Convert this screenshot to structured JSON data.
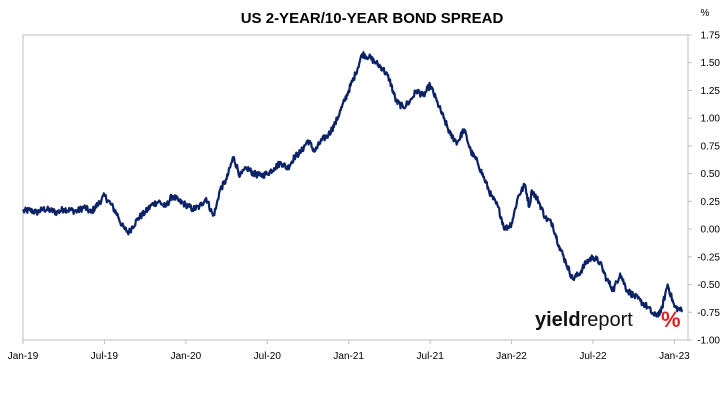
{
  "chart_data": {
    "type": "line",
    "title": "US 2-YEAR/10-YEAR BOND SPREAD",
    "ylabel": "%",
    "ylim": [
      -1.0,
      1.75
    ],
    "yticks": [
      "1.75",
      "1.50",
      "1.25",
      "1.00",
      "0.75",
      "0.50",
      "0.25",
      "0.00",
      "-0.25",
      "-0.50",
      "-0.75",
      "-1.00"
    ],
    "xlabels": [
      "Jan-19",
      "Jul-19",
      "Jan-20",
      "Jul-20",
      "Jan-21",
      "Jul-21",
      "Jan-22",
      "Jul-22",
      "Jan-23"
    ],
    "xrange_months": [
      0,
      49
    ],
    "series": [
      {
        "color": "#0c2267",
        "x": [
          0,
          0.5,
          1,
          1.5,
          2,
          2.5,
          3,
          3.5,
          4,
          4.5,
          5,
          5.5,
          6,
          6.5,
          7,
          7.3,
          7.5,
          7.8,
          8,
          8.5,
          9,
          9.5,
          10,
          10.5,
          11,
          11.5,
          12,
          12.5,
          13,
          13.5,
          14,
          14.2,
          14.5,
          15,
          15.5,
          16,
          16.5,
          17,
          17.5,
          18,
          18.5,
          19,
          19.5,
          20,
          20.5,
          21,
          21.5,
          22,
          22.5,
          23,
          23.5,
          24,
          24.5,
          25,
          25.5,
          26,
          26.5,
          27,
          27.5,
          28,
          28.5,
          29,
          29.5,
          30,
          30.5,
          31,
          31.5,
          32,
          32.5,
          33,
          33.5,
          34,
          34.5,
          35,
          35.5,
          36,
          36.5,
          37,
          37.3,
          37.5,
          38,
          38.5,
          39,
          39.5,
          40,
          40.5,
          41,
          41.5,
          42,
          42.5,
          43,
          43.5,
          44,
          44.5,
          45,
          45.5,
          46,
          46.5,
          47,
          47.5,
          48,
          48.3,
          48.6
        ],
        "values": [
          0.16,
          0.17,
          0.15,
          0.18,
          0.17,
          0.15,
          0.18,
          0.17,
          0.16,
          0.2,
          0.15,
          0.22,
          0.3,
          0.22,
          0.12,
          0.03,
          0.0,
          -0.03,
          0.01,
          0.1,
          0.15,
          0.22,
          0.25,
          0.2,
          0.3,
          0.25,
          0.22,
          0.18,
          0.2,
          0.28,
          0.12,
          0.18,
          0.35,
          0.45,
          0.65,
          0.48,
          0.55,
          0.5,
          0.48,
          0.5,
          0.55,
          0.6,
          0.55,
          0.65,
          0.7,
          0.8,
          0.7,
          0.8,
          0.85,
          0.95,
          1.1,
          1.25,
          1.4,
          1.58,
          1.55,
          1.5,
          1.45,
          1.35,
          1.15,
          1.1,
          1.15,
          1.25,
          1.2,
          1.3,
          1.15,
          1.0,
          0.85,
          0.78,
          0.9,
          0.7,
          0.6,
          0.45,
          0.3,
          0.2,
          0.0,
          0.05,
          0.3,
          0.4,
          0.2,
          0.35,
          0.25,
          0.1,
          0.05,
          -0.15,
          -0.3,
          -0.45,
          -0.4,
          -0.3,
          -0.25,
          -0.3,
          -0.45,
          -0.55,
          -0.4,
          -0.55,
          -0.6,
          -0.65,
          -0.7,
          -0.78,
          -0.75,
          -0.5,
          -0.7,
          -0.72,
          -0.74
        ]
      }
    ],
    "grid": false
  },
  "watermark": {
    "part1": "yield",
    "part2": "report",
    "pct": "%",
    "pct_color_top": "#e02020",
    "pct_color_bottom": "#1f8a2e"
  }
}
